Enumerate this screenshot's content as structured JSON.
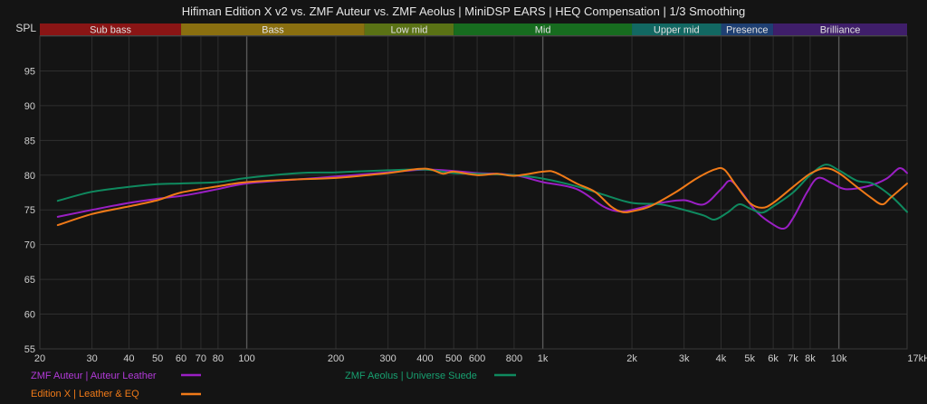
{
  "chart_data": {
    "type": "line",
    "title": "Hifiman Edition X v2 vs. ZMF Auteur vs. ZMF Aeolus | MiniDSP EARS | HEQ Compensation | 1/3 Smoothing",
    "ylabel": "SPL",
    "xlabel": "",
    "x_scale": "log",
    "xlim": [
      20,
      17000
    ],
    "ylim": [
      55,
      100
    ],
    "y_ticks": [
      55,
      60,
      65,
      70,
      75,
      80,
      85,
      90,
      95
    ],
    "x_ticks": [
      {
        "value": 20,
        "label": "20"
      },
      {
        "value": 30,
        "label": "30"
      },
      {
        "value": 40,
        "label": "40"
      },
      {
        "value": 50,
        "label": "50"
      },
      {
        "value": 60,
        "label": "60"
      },
      {
        "value": 70,
        "label": "70"
      },
      {
        "value": 80,
        "label": "80"
      },
      {
        "value": 100,
        "label": "100"
      },
      {
        "value": 200,
        "label": "200"
      },
      {
        "value": 300,
        "label": "300"
      },
      {
        "value": 400,
        "label": "400"
      },
      {
        "value": 500,
        "label": "500"
      },
      {
        "value": 600,
        "label": "600"
      },
      {
        "value": 800,
        "label": "800"
      },
      {
        "value": 1000,
        "label": "1k"
      },
      {
        "value": 2000,
        "label": "2k"
      },
      {
        "value": 3000,
        "label": "3k"
      },
      {
        "value": 4000,
        "label": "4k"
      },
      {
        "value": 5000,
        "label": "5k"
      },
      {
        "value": 6000,
        "label": "6k"
      },
      {
        "value": 7000,
        "label": "7k"
      },
      {
        "value": 8000,
        "label": "8k"
      },
      {
        "value": 10000,
        "label": "10k"
      },
      {
        "value": 17000,
        "label": "17kHz"
      }
    ],
    "major_gridlines": [
      100,
      1000,
      10000
    ],
    "bands": [
      {
        "name": "Sub bass",
        "from": 20,
        "to": 60,
        "color": "#8a1515"
      },
      {
        "name": "Bass",
        "from": 60,
        "to": 250,
        "color": "#8a6f10"
      },
      {
        "name": "Low mid",
        "from": 250,
        "to": 500,
        "color": "#5a7215"
      },
      {
        "name": "Mid",
        "from": 500,
        "to": 2000,
        "color": "#176c1f"
      },
      {
        "name": "Upper mid",
        "from": 2000,
        "to": 4000,
        "color": "#126862"
      },
      {
        "name": "Presence",
        "from": 4000,
        "to": 6000,
        "color": "#1e3f72"
      },
      {
        "name": "Brilliance",
        "from": 6000,
        "to": 17000,
        "color": "#3f1e6a"
      }
    ],
    "series": [
      {
        "name": "ZMF Auteur | Auteur Leather",
        "color": "#9a1fc4",
        "points": [
          [
            23,
            74
          ],
          [
            30,
            75
          ],
          [
            40,
            76
          ],
          [
            50,
            76.6
          ],
          [
            60,
            77
          ],
          [
            70,
            77.5
          ],
          [
            80,
            78
          ],
          [
            100,
            78.8
          ],
          [
            150,
            79.4
          ],
          [
            200,
            79.8
          ],
          [
            300,
            80.4
          ],
          [
            400,
            80.8
          ],
          [
            500,
            80.6
          ],
          [
            600,
            80.3
          ],
          [
            800,
            80
          ],
          [
            1000,
            79
          ],
          [
            1300,
            78
          ],
          [
            1600,
            75.5
          ],
          [
            1800,
            74.8
          ],
          [
            2000,
            75
          ],
          [
            2500,
            76
          ],
          [
            3000,
            76.4
          ],
          [
            3500,
            75.8
          ],
          [
            4000,
            78
          ],
          [
            4300,
            79.2
          ],
          [
            4700,
            77.5
          ],
          [
            5200,
            75
          ],
          [
            5800,
            73.3
          ],
          [
            6500,
            72.3
          ],
          [
            7000,
            73.8
          ],
          [
            7800,
            77.5
          ],
          [
            8500,
            79.6
          ],
          [
            9500,
            78.8
          ],
          [
            10500,
            78
          ],
          [
            12500,
            78.4
          ],
          [
            14500,
            79.5
          ],
          [
            16000,
            81
          ],
          [
            17000,
            80.3
          ]
        ]
      },
      {
        "name": "ZMF Aeolus | Universe Suede",
        "color": "#0f8a5f",
        "points": [
          [
            23,
            76.3
          ],
          [
            30,
            77.6
          ],
          [
            40,
            78.3
          ],
          [
            50,
            78.7
          ],
          [
            60,
            78.8
          ],
          [
            80,
            79
          ],
          [
            100,
            79.6
          ],
          [
            150,
            80.3
          ],
          [
            200,
            80.4
          ],
          [
            300,
            80.7
          ],
          [
            400,
            80.8
          ],
          [
            500,
            80.3
          ],
          [
            600,
            80.2
          ],
          [
            800,
            80
          ],
          [
            1000,
            79.5
          ],
          [
            1300,
            78.4
          ],
          [
            1600,
            77.2
          ],
          [
            2000,
            76
          ],
          [
            2500,
            75.8
          ],
          [
            3000,
            75
          ],
          [
            3500,
            74.2
          ],
          [
            3800,
            73.6
          ],
          [
            4200,
            74.6
          ],
          [
            4600,
            75.8
          ],
          [
            5000,
            75.2
          ],
          [
            5500,
            74.6
          ],
          [
            6000,
            75.5
          ],
          [
            7000,
            77.5
          ],
          [
            8000,
            80
          ],
          [
            9000,
            81.5
          ],
          [
            10000,
            80.7
          ],
          [
            11500,
            79.2
          ],
          [
            13000,
            78.8
          ],
          [
            15000,
            77
          ],
          [
            17000,
            74.7
          ]
        ]
      },
      {
        "name": "Edition X | Leather & EQ",
        "color": "#f07a18",
        "points": [
          [
            23,
            72.8
          ],
          [
            30,
            74.4
          ],
          [
            40,
            75.5
          ],
          [
            50,
            76.4
          ],
          [
            60,
            77.5
          ],
          [
            80,
            78.4
          ],
          [
            100,
            79
          ],
          [
            150,
            79.4
          ],
          [
            200,
            79.6
          ],
          [
            300,
            80.3
          ],
          [
            380,
            80.9
          ],
          [
            420,
            80.8
          ],
          [
            460,
            80.2
          ],
          [
            500,
            80.5
          ],
          [
            600,
            80
          ],
          [
            700,
            80.2
          ],
          [
            800,
            79.9
          ],
          [
            1000,
            80.5
          ],
          [
            1100,
            80.4
          ],
          [
            1300,
            78.8
          ],
          [
            1500,
            77.6
          ],
          [
            1700,
            75.5
          ],
          [
            1850,
            74.7
          ],
          [
            2000,
            74.8
          ],
          [
            2300,
            75.5
          ],
          [
            2800,
            77.5
          ],
          [
            3300,
            79.5
          ],
          [
            3800,
            80.8
          ],
          [
            4100,
            80.8
          ],
          [
            4500,
            78.5
          ],
          [
            5000,
            76
          ],
          [
            5500,
            75.3
          ],
          [
            6000,
            76
          ],
          [
            7000,
            78.3
          ],
          [
            8000,
            80.2
          ],
          [
            9000,
            81
          ],
          [
            10000,
            80.3
          ],
          [
            11500,
            78.3
          ],
          [
            12800,
            76.8
          ],
          [
            14000,
            75.8
          ],
          [
            15000,
            76.8
          ],
          [
            17000,
            78.8
          ]
        ]
      }
    ]
  },
  "legend": [
    {
      "label": "ZMF Auteur | Auteur Leather",
      "color": "#9a1fc4"
    },
    {
      "label": "ZMF Aeolus | Universe Suede",
      "color": "#0f8a5f"
    },
    {
      "label": "Edition X | Leather & EQ",
      "color": "#f07a18"
    }
  ]
}
